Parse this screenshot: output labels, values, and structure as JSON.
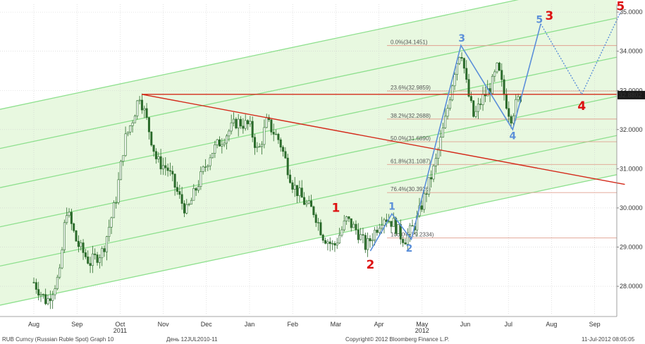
{
  "chart_data": {
    "type": "candlestick",
    "title": "",
    "ylim": [
      27.3,
      35.2
    ],
    "yticks": [
      28.0,
      29.0,
      30.0,
      31.0,
      32.0,
      33.0,
      34.0,
      35.0
    ],
    "ytick_labels": [
      "28.0000",
      "29.0000",
      "30.0000",
      "31.0000",
      "32.0000",
      "33.0000",
      "34.0000",
      "35.0000"
    ],
    "last_price": 32.8802,
    "last_price_label": "32.8802",
    "x_month_labels": [
      "Aug",
      "Sep",
      "Oct",
      "Nov",
      "Dec",
      "Jan",
      "Feb",
      "Mar",
      "Apr",
      "May",
      "Jun",
      "Jul",
      "Aug",
      "Sep"
    ],
    "x_year_labels": [
      "2011",
      "2012"
    ],
    "price_path": [
      [
        0,
        28.1
      ],
      [
        0.3,
        27.6
      ],
      [
        0.6,
        28.3
      ],
      [
        0.75,
        30.0
      ],
      [
        1.0,
        29.1
      ],
      [
        1.3,
        28.6
      ],
      [
        1.6,
        28.9
      ],
      [
        1.9,
        30.2
      ],
      [
        2.1,
        31.7
      ],
      [
        2.3,
        32.3
      ],
      [
        2.45,
        32.9
      ],
      [
        2.6,
        32.3
      ],
      [
        2.85,
        31.2
      ],
      [
        3.1,
        31.0
      ],
      [
        3.4,
        30.2
      ],
      [
        3.55,
        29.9
      ],
      [
        3.8,
        30.6
      ],
      [
        4.1,
        31.4
      ],
      [
        4.4,
        31.8
      ],
      [
        4.7,
        32.2
      ],
      [
        5.0,
        32.1
      ],
      [
        5.2,
        31.4
      ],
      [
        5.4,
        32.2
      ],
      [
        5.7,
        31.7
      ],
      [
        6.0,
        30.6
      ],
      [
        6.3,
        30.1
      ],
      [
        6.5,
        29.9
      ],
      [
        6.7,
        29.3
      ],
      [
        6.95,
        29.0
      ],
      [
        7.25,
        29.7
      ],
      [
        7.5,
        29.4
      ],
      [
        7.7,
        29.0
      ],
      [
        7.9,
        29.4
      ],
      [
        8.1,
        29.8
      ],
      [
        8.35,
        29.6
      ],
      [
        8.5,
        29.3
      ],
      [
        8.6,
        29.2
      ],
      [
        8.85,
        29.6
      ],
      [
        9.0,
        30.1
      ],
      [
        9.3,
        31.1
      ],
      [
        9.55,
        32.3
      ],
      [
        9.75,
        33.5
      ],
      [
        9.9,
        34.1
      ],
      [
        10.05,
        33.0
      ],
      [
        10.2,
        32.3
      ],
      [
        10.4,
        32.8
      ],
      [
        10.6,
        33.1
      ],
      [
        10.75,
        33.6
      ],
      [
        10.9,
        32.9
      ],
      [
        11.05,
        32.3
      ],
      [
        11.2,
        32.7
      ],
      [
        11.3,
        32.88
      ]
    ],
    "fib_levels": [
      {
        "label": "0.0%(34.1451)",
        "value": 34.1451
      },
      {
        "label": "23.6%(32.9859)",
        "value": 32.9859
      },
      {
        "label": "38.2%(32.2688)",
        "value": 32.2688
      },
      {
        "label": "50.0%(31.6890)",
        "value": 31.689
      },
      {
        "label": "61.8%(31.1087)",
        "value": 31.1087
      },
      {
        "label": "76.4%(30.3926)",
        "value": 30.3926
      },
      {
        "label": "100.0%(29.2334)",
        "value": 29.2334
      }
    ],
    "channel": {
      "slope_per_month": 0.233,
      "base_at_aug": [
        27.7,
        28.7,
        29.7,
        30.7,
        31.7,
        32.7
      ]
    },
    "resistance_level": 32.9,
    "downtrend": {
      "start": [
        2.5,
        32.9
      ],
      "end": [
        13.7,
        30.6
      ]
    },
    "blue_path": [
      [
        7.8,
        28.9
      ],
      [
        8.3,
        29.85
      ],
      [
        8.75,
        29.2
      ],
      [
        9.9,
        34.15
      ],
      [
        11.1,
        32.0
      ],
      [
        11.75,
        34.7
      ]
    ],
    "blue_dotted_path": [
      [
        11.75,
        34.7
      ],
      [
        12.7,
        32.9
      ],
      [
        13.6,
        35.0
      ]
    ],
    "wave_labels": [
      {
        "text": "1",
        "x": 7.0,
        "y": 29.9,
        "color": "#dd1111",
        "size": 17
      },
      {
        "text": "2",
        "x": 7.8,
        "y": 28.45,
        "color": "#dd1111",
        "size": 17
      },
      {
        "text": "1",
        "x": 8.3,
        "y": 29.95,
        "color": "#5b8fd9",
        "size": 14
      },
      {
        "text": "2",
        "x": 8.7,
        "y": 28.88,
        "color": "#5b8fd9",
        "size": 14
      },
      {
        "text": "3",
        "x": 9.92,
        "y": 34.25,
        "color": "#5b8fd9",
        "size": 14
      },
      {
        "text": "4",
        "x": 11.1,
        "y": 31.75,
        "color": "#5b8fd9",
        "size": 14
      },
      {
        "text": "5",
        "x": 11.72,
        "y": 34.72,
        "color": "#5b8fd9",
        "size": 14
      },
      {
        "text": "3",
        "x": 11.95,
        "y": 34.8,
        "color": "#dd1111",
        "size": 17
      },
      {
        "text": "4",
        "x": 12.7,
        "y": 32.5,
        "color": "#dd1111",
        "size": 17
      },
      {
        "text": "5",
        "x": 13.6,
        "y": 35.05,
        "color": "#dd1111",
        "size": 17
      }
    ]
  },
  "footer": {
    "left": "RUB Curncy (Russian Ruble Spot) Graph 10",
    "center_left": "День 12JUL2010-11",
    "center": "Copyright© 2012 Bloomberg Finance L.P.",
    "right": "11-Jul-2012 08:05:05"
  },
  "colors": {
    "channel_fill": "#e8f8e0",
    "channel_line": "#8ee08e",
    "candle": "#2a6a2a",
    "red": "#d42a1a",
    "blue": "#5b8fd9",
    "fib_line": "#e0a090",
    "grid": "#cfcfcf"
  }
}
